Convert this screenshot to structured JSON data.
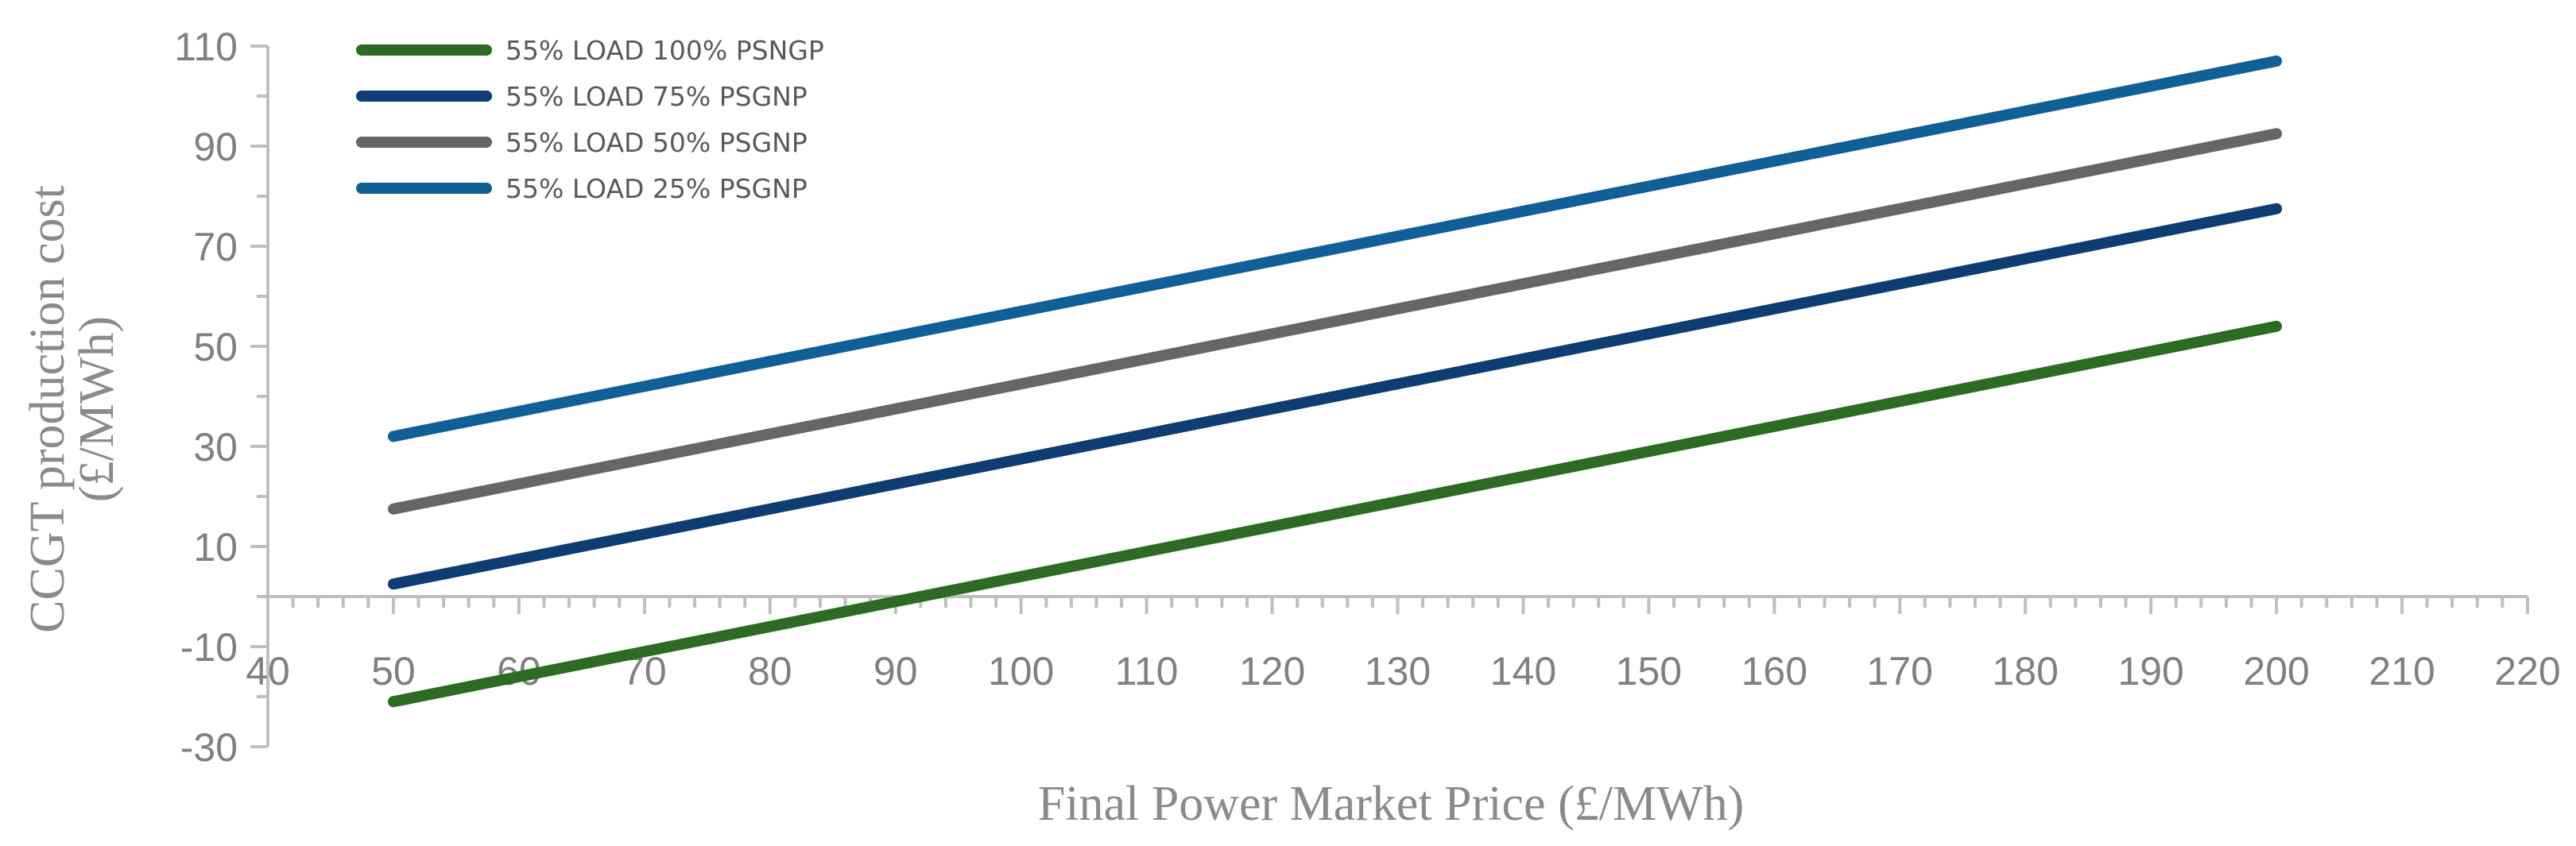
{
  "chart_data": {
    "type": "line",
    "xlabel": "Final Power Market Price (£/MWh)",
    "ylabel_lines": [
      "CCGT production cost",
      "(£/MWh)"
    ],
    "xlim": [
      40,
      220
    ],
    "ylim": [
      -30,
      110
    ],
    "x_ticks": [
      40,
      50,
      60,
      70,
      80,
      90,
      100,
      110,
      120,
      130,
      140,
      150,
      160,
      170,
      180,
      190,
      200,
      210,
      220
    ],
    "y_ticks": [
      -30,
      -10,
      10,
      30,
      50,
      70,
      90,
      110
    ],
    "legend_position": "top-left",
    "series": [
      {
        "name": "55% LOAD 100% PSNGP",
        "color": "#2d6a24",
        "x": [
          50,
          200
        ],
        "y": [
          -21,
          54
        ]
      },
      {
        "name": "55% LOAD 75% PSGNP",
        "color": "#0d3d73",
        "x": [
          50,
          200
        ],
        "y": [
          2.5,
          77.5
        ]
      },
      {
        "name": "55% LOAD 50% PSGNP",
        "color": "#666666",
        "x": [
          50,
          200
        ],
        "y": [
          17.5,
          92.5
        ]
      },
      {
        "name": "55% LOAD 25% PSGNP",
        "color": "#115f97",
        "x": [
          50,
          200
        ],
        "y": [
          32,
          107
        ]
      }
    ]
  }
}
